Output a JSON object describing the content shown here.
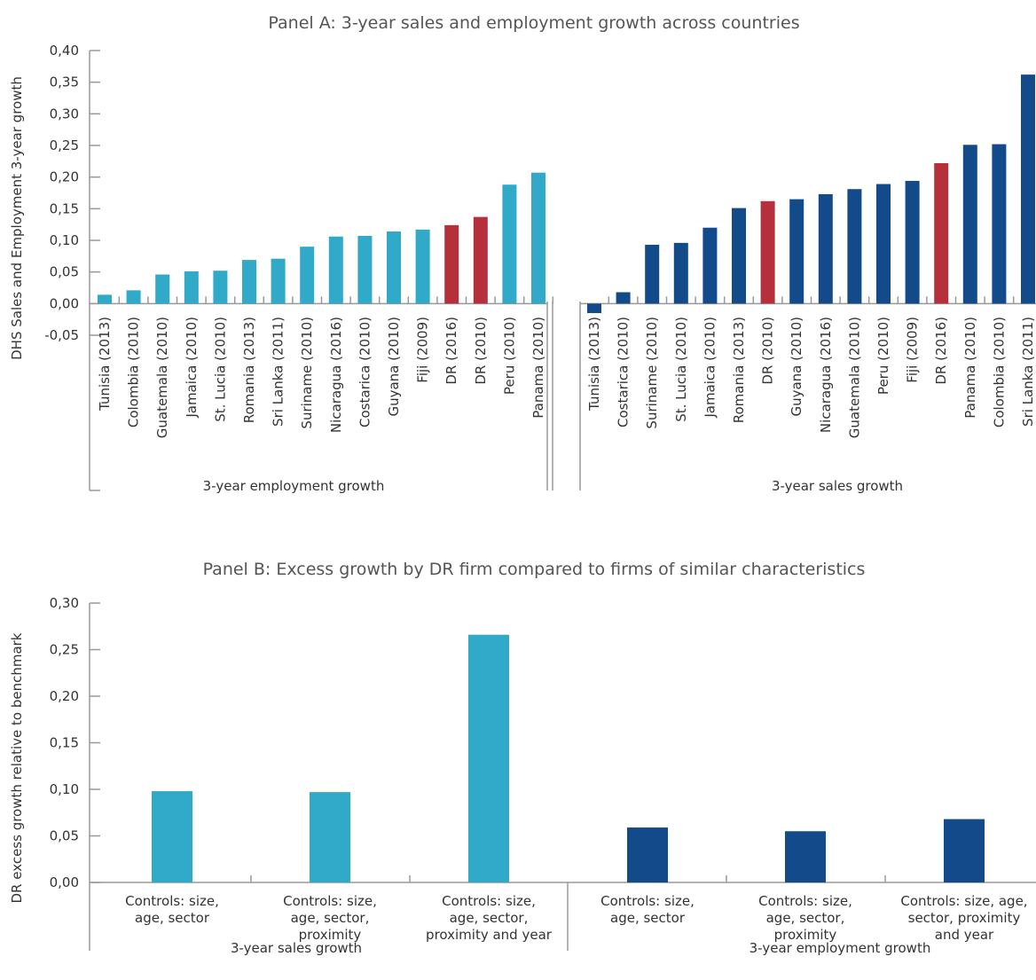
{
  "colors": {
    "light": "#31a9c9",
    "dark": "#124a8a",
    "red": "#b5303a",
    "axis": "#999999"
  },
  "chart_data": [
    {
      "type": "bar",
      "title": "Panel A: 3-year sales and employment growth across countries",
      "ylabel": "DHS Sales and Employment 3-year growth",
      "ylim": [
        -0.05,
        0.4
      ],
      "yticks": [
        "0,40",
        "0,35",
        "0,30",
        "0,25",
        "0,20",
        "0,15",
        "0,10",
        "0,05",
        "0,00",
        "-0,05"
      ],
      "grid": false,
      "groups": [
        {
          "label": "3-year employment growth",
          "color": "#31a9c9",
          "categories": [
            "Tunisia (2013)",
            "Colombia (2010)",
            "Guatemala (2010)",
            "Jamaica (2010)",
            "St. Lucia (2010)",
            "Romania (2013)",
            "Sri Lanka (2011)",
            "Suriname (2010)",
            "Nicaragua (2016)",
            "Costarica (2010)",
            "Guyana (2010)",
            "Fiji (2009)",
            "DR (2016)",
            "DR (2010)",
            "Peru (2010)",
            "Panama (2010)"
          ],
          "values": [
            0.014,
            0.021,
            0.046,
            0.051,
            0.052,
            0.069,
            0.071,
            0.09,
            0.106,
            0.107,
            0.114,
            0.117,
            0.124,
            0.137,
            0.188,
            0.207
          ],
          "highlight": [
            "DR (2016)",
            "DR (2010)"
          ]
        },
        {
          "label": "3-year sales growth",
          "color": "#124a8a",
          "categories": [
            "Tunisia (2013)",
            "Costarica (2010)",
            "Suriname (2010)",
            "St. Lucia (2010)",
            "Jamaica (2010)",
            "Romania (2013)",
            "DR (2010)",
            "Guyana (2010)",
            "Nicaragua (2016)",
            "Guatemala (2010)",
            "Peru (2010)",
            "Fiji (2009)",
            "DR (2016)",
            "Panama (2010)",
            "Colombia (2010)",
            "Sri Lanka (2011)"
          ],
          "values": [
            -0.015,
            0.018,
            0.093,
            0.096,
            0.12,
            0.151,
            0.162,
            0.165,
            0.173,
            0.181,
            0.189,
            0.194,
            0.222,
            0.251,
            0.252,
            0.362
          ],
          "highlight": [
            "DR (2010)",
            "DR (2016)"
          ]
        }
      ]
    },
    {
      "type": "bar",
      "title": "Panel B: Excess growth by DR firm compared to firms of similar characteristics",
      "ylabel": "DR excess growth relative to benchmark",
      "ylim": [
        0,
        0.3
      ],
      "yticks": [
        "0,30",
        "0,25",
        "0,20",
        "0,15",
        "0,10",
        "0,05",
        "0,00"
      ],
      "grid": false,
      "groups": [
        {
          "label": "3-year sales growth",
          "color": "#31a9c9",
          "categories": [
            [
              "Controls: size,",
              "age, sector"
            ],
            [
              "Controls: size,",
              "age, sector,",
              "proximity"
            ],
            [
              "Controls: size,",
              "age, sector,",
              "proximity and year"
            ]
          ],
          "values": [
            0.098,
            0.097,
            0.266
          ]
        },
        {
          "label": "3-year employment growth",
          "color": "#124a8a",
          "categories": [
            [
              "Controls: size,",
              "age, sector"
            ],
            [
              "Controls: size,",
              "age, sector,",
              "proximity"
            ],
            [
              "Controls: size, age,",
              "sector, proximity",
              "and year"
            ]
          ],
          "values": [
            0.059,
            0.055,
            0.068
          ]
        }
      ]
    }
  ]
}
